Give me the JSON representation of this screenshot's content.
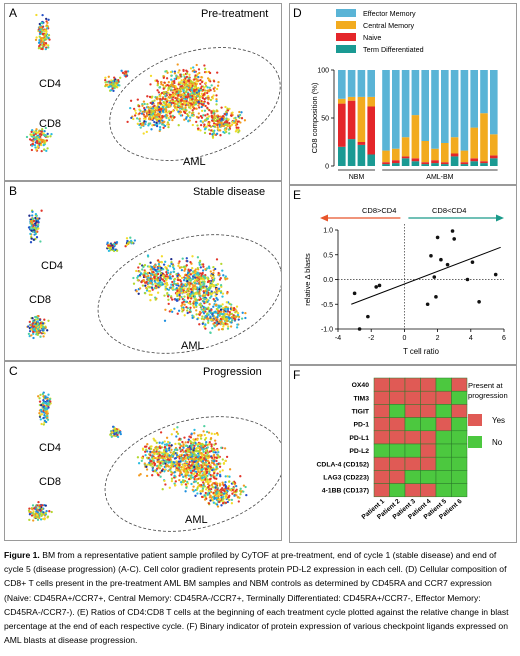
{
  "panels": {
    "A": {
      "label": "A",
      "title": "Pre-treatment",
      "cd4": "CD4",
      "cd8": "CD8",
      "aml": "AML"
    },
    "B": {
      "label": "B",
      "title": "Stable disease",
      "cd4": "CD4",
      "cd8": "CD8",
      "aml": "AML"
    },
    "C": {
      "label": "C",
      "title": "Progression",
      "cd4": "CD4",
      "cd8": "CD8",
      "aml": "AML"
    },
    "D": {
      "label": "D"
    },
    "E": {
      "label": "E"
    },
    "F": {
      "label": "F"
    }
  },
  "colors": {
    "effector_memory": "#5ab4d6",
    "central_memory": "#f2ab1f",
    "naive": "#e4262a",
    "term_diff": "#1a9a93",
    "heat_yes": "#e05a55",
    "heat_no": "#4cc83f"
  },
  "chart_data": [
    {
      "panel": "D",
      "type": "bar",
      "stacked": true,
      "ylabel": "CD8 composition (%)",
      "ylim": [
        0,
        100
      ],
      "yticks": [
        "0",
        "50",
        "100"
      ],
      "groups": [
        {
          "label": "NBM",
          "count": 4
        },
        {
          "label": "AML-BM",
          "count": 12
        }
      ],
      "legend": [
        "Effector Memory",
        "Central Memory",
        "Naive",
        "Term Differentiated"
      ],
      "legend_position": "top-right",
      "series": [
        {
          "name": "Term Differentiated",
          "values": [
            20,
            28,
            22,
            12,
            2,
            3,
            8,
            5,
            2,
            3,
            2,
            10,
            2,
            5,
            3,
            8
          ]
        },
        {
          "name": "Naive",
          "values": [
            45,
            40,
            3,
            50,
            2,
            3,
            2,
            3,
            2,
            3,
            2,
            3,
            2,
            3,
            2,
            3
          ]
        },
        {
          "name": "Central Memory",
          "values": [
            5,
            4,
            47,
            10,
            12,
            12,
            20,
            45,
            22,
            12,
            20,
            17,
            12,
            32,
            50,
            22
          ]
        },
        {
          "name": "Effector Memory",
          "values": [
            30,
            28,
            28,
            28,
            84,
            82,
            70,
            47,
            74,
            82,
            76,
            70,
            84,
            60,
            45,
            67
          ]
        }
      ]
    },
    {
      "panel": "E",
      "type": "scatter",
      "xlabel": "T cell ratio",
      "ylabel": "relative Δ blasts",
      "xlim": [
        -4,
        6
      ],
      "ylim": [
        -1.0,
        1.0
      ],
      "xticks": [
        "-4",
        "-2",
        "0",
        "2",
        "4",
        "6"
      ],
      "yticks": [
        "-1.0",
        "-0.5",
        "0.0",
        "0.5",
        "1.0"
      ],
      "arrow_left": "CD8>CD4",
      "arrow_right": "CD8<CD4",
      "points": [
        [
          -3.0,
          -0.28
        ],
        [
          -2.7,
          -1.0
        ],
        [
          -2.2,
          -0.75
        ],
        [
          -1.7,
          -0.15
        ],
        [
          -1.5,
          -0.12
        ],
        [
          1.4,
          -0.5
        ],
        [
          1.6,
          0.48
        ],
        [
          1.8,
          0.05
        ],
        [
          1.9,
          -0.35
        ],
        [
          2.0,
          0.85
        ],
        [
          2.2,
          0.4
        ],
        [
          2.6,
          0.3
        ],
        [
          2.9,
          0.98
        ],
        [
          3.0,
          0.82
        ],
        [
          3.8,
          0.0
        ],
        [
          4.5,
          -0.45
        ],
        [
          4.1,
          0.35
        ],
        [
          5.5,
          0.1
        ]
      ],
      "trendline": [
        [
          -3.2,
          -0.5
        ],
        [
          5.8,
          0.65
        ]
      ]
    },
    {
      "panel": "F",
      "type": "heatmap",
      "rows": [
        "OX40",
        "TIM3",
        "TIGIT",
        "PD-1",
        "PD-L1",
        "PD-L2",
        "CDLA-4 (CD152)",
        "LAG3 (CD223)",
        "4-1BB (CD137)"
      ],
      "columns": [
        "Patient 1",
        "Patient 2",
        "Patient 3",
        "Patient 4",
        "Patient 5",
        "Patient 6"
      ],
      "legend_title": "Present at progression",
      "legend": [
        "Yes",
        "No"
      ],
      "values": [
        [
          1,
          1,
          1,
          1,
          0,
          1
        ],
        [
          1,
          1,
          1,
          1,
          1,
          0
        ],
        [
          1,
          0,
          1,
          1,
          0,
          1
        ],
        [
          1,
          1,
          0,
          0,
          1,
          0
        ],
        [
          1,
          1,
          1,
          1,
          0,
          0
        ],
        [
          0,
          0,
          0,
          1,
          0,
          0
        ],
        [
          1,
          1,
          1,
          1,
          0,
          0
        ],
        [
          1,
          1,
          0,
          0,
          0,
          0
        ],
        [
          1,
          0,
          1,
          1,
          0,
          0
        ]
      ]
    }
  ],
  "caption": {
    "bold": "Figure 1.",
    "text": " BM from a representative patient sample profiled by CyTOF at pre-treatment, end of cycle 1 (stable disease) and end of cycle 5 (disease progression) (A-C). Cell color gradient represents protein PD-L2 expression in each cell. (D) Cellular composition of CD8+ T cells present in the pre-treatment AML BM samples and NBM controls as determined by CD45RA and CCR7 expression (Naive: CD45RA+/CCR7+, Central Memory: CD45RA-/CCR7+, Terminally Differentiated: CD45RA+/CCR7-, Effector Memory: CD45RA-/CCR7-). (E) Ratios of CD4:CD8 T cells at the beginning of each treatment cycle plotted against the relative change in blast percentage at the end of each respective cycle. (F) Binary indicator of protein expression of various checkpoint ligands expressed on AML blasts at disease progression."
  }
}
